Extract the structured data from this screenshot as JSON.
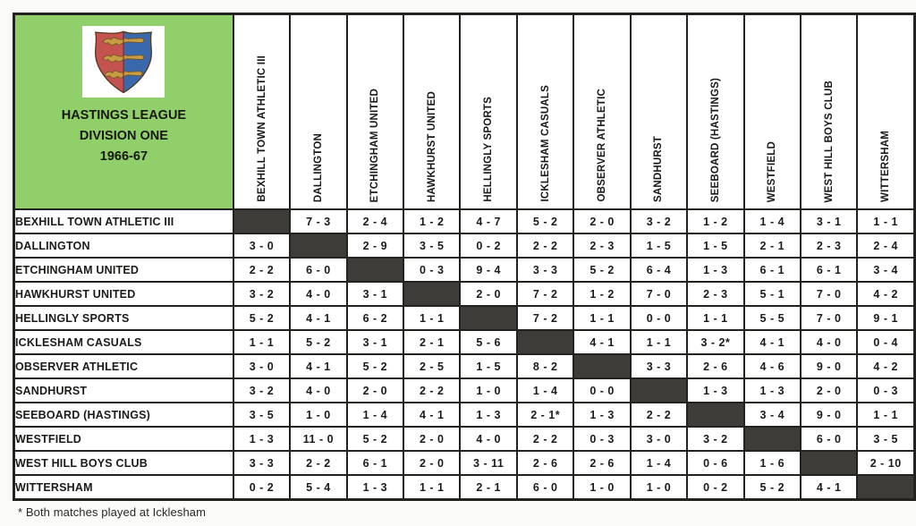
{
  "title": {
    "line1": "HASTINGS LEAGUE",
    "line2": "DIVISION ONE",
    "line3": "1966-67",
    "crest_icon": "hastings-borough-crest"
  },
  "teams": [
    "BEXHILL TOWN ATHLETIC III",
    "DALLINGTON",
    "ETCHINGHAM UNITED",
    "HAWKHURST UNITED",
    "HELLINGLY SPORTS",
    "ICKLESHAM CASUALS",
    "OBSERVER ATHLETIC",
    "SANDHURST",
    "SEEBOARD (HASTINGS)",
    "WESTFIELD",
    "WEST HILL BOYS CLUB",
    "WITTERSHAM"
  ],
  "results": [
    [
      null,
      "7 - 3",
      "2 - 4",
      "1 - 2",
      "4 - 7",
      "5 - 2",
      "2 - 0",
      "3 - 2",
      "1 - 2",
      "1 - 4",
      "3 - 1",
      "1 - 1"
    ],
    [
      "3 - 0",
      null,
      "2 - 9",
      "3 - 5",
      "0 - 2",
      "2 - 2",
      "2 - 3",
      "1 - 5",
      "1 - 5",
      "2 - 1",
      "2 - 3",
      "2 - 4"
    ],
    [
      "2 - 2",
      "6 - 0",
      null,
      "0 - 3",
      "9 - 4",
      "3 - 3",
      "5 - 2",
      "6 - 4",
      "1 - 3",
      "6 - 1",
      "6 - 1",
      "3 - 4"
    ],
    [
      "3 - 2",
      "4 - 0",
      "3 - 1",
      null,
      "2 - 0",
      "7 - 2",
      "1 - 2",
      "7 - 0",
      "2 - 3",
      "5 - 1",
      "7 - 0",
      "4 - 2"
    ],
    [
      "5 - 2",
      "4 - 1",
      "6 - 2",
      "1 - 1",
      null,
      "7 - 2",
      "1 - 1",
      "0 - 0",
      "1 - 1",
      "5 - 5",
      "7 - 0",
      "9 - 1"
    ],
    [
      "1 - 1",
      "5 - 2",
      "3 - 1",
      "2 - 1",
      "5 - 6",
      null,
      "4 - 1",
      "1 - 1",
      "3 - 2*",
      "4 - 1",
      "4 - 0",
      "0 - 4"
    ],
    [
      "3 - 0",
      "4 - 1",
      "5 - 2",
      "2 - 5",
      "1 - 5",
      "8 - 2",
      null,
      "3 - 3",
      "2 - 6",
      "4 - 6",
      "9 - 0",
      "4 - 2"
    ],
    [
      "3 - 2",
      "4 - 0",
      "2 - 0",
      "2 - 2",
      "1 - 0",
      "1 - 4",
      "0 - 0",
      null,
      "1 - 3",
      "1 - 3",
      "2 - 0",
      "0 - 3"
    ],
    [
      "3 - 5",
      "1 - 0",
      "1 - 4",
      "4 - 1",
      "1 - 3",
      "2 - 1*",
      "1 - 3",
      "2 - 2",
      null,
      "3 - 4",
      "9 - 0",
      "1 - 1"
    ],
    [
      "1 - 3",
      "11 - 0",
      "5 - 2",
      "2 - 0",
      "4 - 0",
      "2 - 2",
      "0 - 3",
      "3 - 0",
      "3 - 2",
      null,
      "6 - 0",
      "3 - 5"
    ],
    [
      "3 - 3",
      "2 - 2",
      "6 - 1",
      "2 - 0",
      "3 - 11",
      "2 - 6",
      "2 - 6",
      "1 - 4",
      "0 - 6",
      "1 - 6",
      null,
      "2 - 10"
    ],
    [
      "0 - 2",
      "5 - 4",
      "1 - 3",
      "1 - 1",
      "2 - 1",
      "6 - 0",
      "1 - 0",
      "1 - 0",
      "0 - 2",
      "5 - 2",
      "4 - 1",
      null
    ]
  ],
  "footnote": "* Both matches played at Icklesham",
  "colors": {
    "panel_green": "#90cf69",
    "diagonal_fill": "#3e3c38",
    "grid_border": "#23221f",
    "crest_red": "#c4524f",
    "crest_blue": "#3a68ad",
    "crest_gold": "#c89b45"
  }
}
